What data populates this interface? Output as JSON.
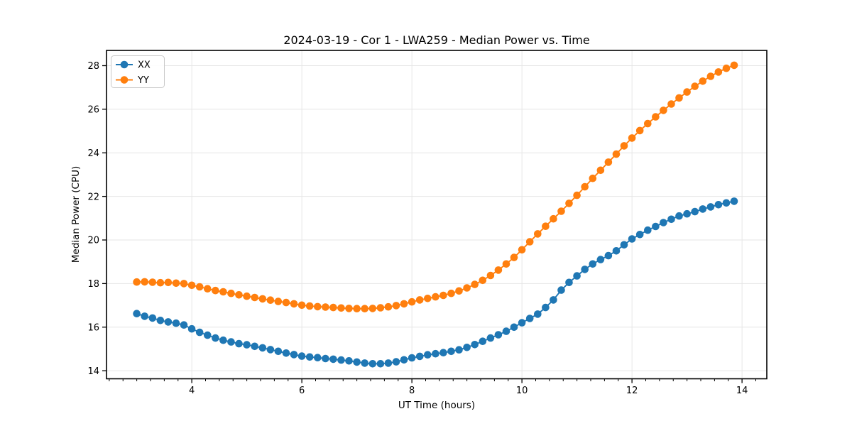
{
  "chart_data": {
    "type": "line",
    "title": "2024-03-19 - Cor 1 - LWA259 - Median Power vs. Time",
    "xlabel": "UT Time (hours)",
    "ylabel": "Median Power (CPU)",
    "xlim": [
      2.45,
      14.45
    ],
    "ylim": [
      13.63,
      28.7
    ],
    "xticks": [
      4,
      6,
      8,
      10,
      12,
      14
    ],
    "yticks": [
      14,
      16,
      18,
      20,
      22,
      24,
      26,
      28
    ],
    "minor_xtick_step": 0.25,
    "grid": true,
    "legend_position": "upper left",
    "marker": "circle",
    "x": [
      3.0,
      3.143,
      3.286,
      3.429,
      3.571,
      3.714,
      3.857,
      4.0,
      4.143,
      4.286,
      4.429,
      4.571,
      4.714,
      4.857,
      5.0,
      5.143,
      5.286,
      5.429,
      5.571,
      5.714,
      5.857,
      6.0,
      6.143,
      6.286,
      6.429,
      6.571,
      6.714,
      6.857,
      7.0,
      7.143,
      7.286,
      7.429,
      7.571,
      7.714,
      7.857,
      8.0,
      8.143,
      8.286,
      8.429,
      8.571,
      8.714,
      8.857,
      9.0,
      9.143,
      9.286,
      9.429,
      9.571,
      9.714,
      9.857,
      10.0,
      10.143,
      10.286,
      10.429,
      10.571,
      10.714,
      10.857,
      11.0,
      11.143,
      11.286,
      11.429,
      11.571,
      11.714,
      11.857,
      12.0,
      12.143,
      12.286,
      12.429,
      12.571,
      12.714,
      12.857,
      13.0,
      13.143,
      13.286,
      13.429,
      13.571,
      13.714,
      13.857
    ],
    "series": [
      {
        "name": "XX",
        "color": "#1f77b4",
        "values": [
          16.62,
          16.5,
          16.42,
          16.31,
          16.24,
          16.18,
          16.1,
          15.92,
          15.76,
          15.63,
          15.5,
          15.4,
          15.32,
          15.24,
          15.19,
          15.12,
          15.05,
          14.97,
          14.89,
          14.81,
          14.74,
          14.67,
          14.63,
          14.6,
          14.56,
          14.53,
          14.49,
          14.45,
          14.4,
          14.35,
          14.32,
          14.32,
          14.35,
          14.41,
          14.5,
          14.59,
          14.66,
          14.73,
          14.78,
          14.83,
          14.89,
          14.96,
          15.07,
          15.2,
          15.35,
          15.5,
          15.65,
          15.81,
          16.0,
          16.2,
          16.4,
          16.6,
          16.9,
          17.25,
          17.7,
          18.05,
          18.35,
          18.65,
          18.9,
          19.1,
          19.28,
          19.5,
          19.78,
          20.05,
          20.25,
          20.45,
          20.62,
          20.8,
          20.95,
          21.1,
          21.2,
          21.3,
          21.42,
          21.52,
          21.62,
          21.7,
          21.78
        ]
      },
      {
        "name": "YY",
        "color": "#ff7f0e",
        "values": [
          18.07,
          18.08,
          18.06,
          18.04,
          18.05,
          18.02,
          18.0,
          17.92,
          17.85,
          17.76,
          17.68,
          17.62,
          17.55,
          17.48,
          17.42,
          17.36,
          17.3,
          17.24,
          17.18,
          17.13,
          17.07,
          17.01,
          16.97,
          16.94,
          16.92,
          16.9,
          16.88,
          16.86,
          16.85,
          16.85,
          16.86,
          16.89,
          16.93,
          16.99,
          17.07,
          17.16,
          17.25,
          17.32,
          17.39,
          17.46,
          17.55,
          17.66,
          17.8,
          17.96,
          18.15,
          18.37,
          18.62,
          18.9,
          19.2,
          19.55,
          19.92,
          20.28,
          20.63,
          20.97,
          21.32,
          21.68,
          22.05,
          22.44,
          22.83,
          23.2,
          23.57,
          23.94,
          24.32,
          24.68,
          25.02,
          25.34,
          25.65,
          25.95,
          26.24,
          26.52,
          26.79,
          27.05,
          27.29,
          27.51,
          27.71,
          27.88,
          28.02
        ]
      }
    ]
  }
}
